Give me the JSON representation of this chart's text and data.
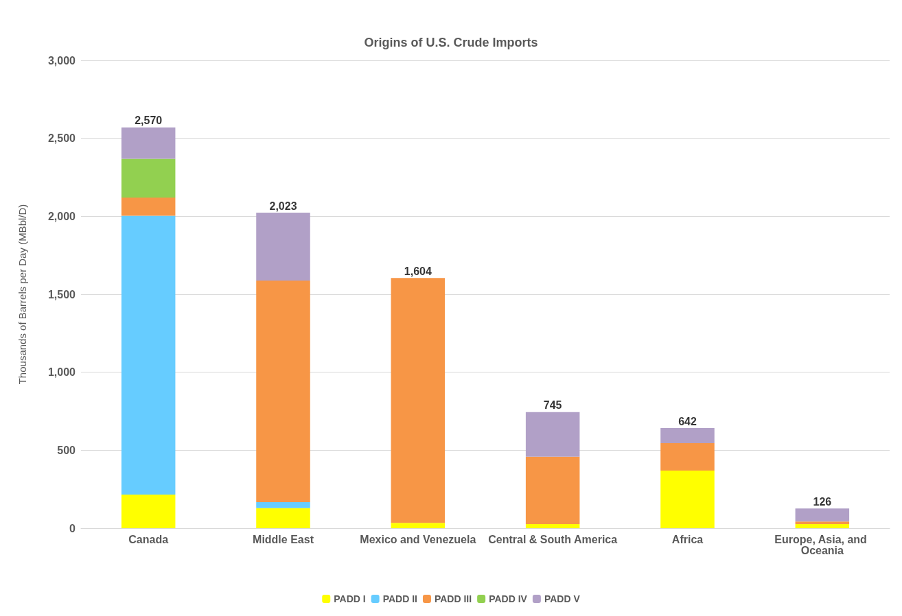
{
  "chart_data": {
    "type": "bar",
    "title": "Origins of U.S. Crude Imports",
    "ylabel": "Thousands of Barrels per Day (MBbl/D)",
    "categories": [
      "Canada",
      "Middle East",
      "Mexico and Venezuela",
      "Central & South America",
      "Africa",
      "Europe, Asia, and Oceania"
    ],
    "stacked": true,
    "series": [
      {
        "name": "PADD I",
        "color": "#ffff00",
        "values": [
          215,
          129,
          34,
          26,
          369,
          26
        ]
      },
      {
        "name": "PADD II",
        "color": "#66ccff",
        "values": [
          1789,
          38,
          null,
          null,
          null,
          null
        ]
      },
      {
        "name": "PADD III",
        "color": "#f79646",
        "values": [
          116,
          1421,
          1570,
          433,
          176,
          17
        ]
      },
      {
        "name": "PADD IV",
        "color": "#92d050",
        "values": [
          249,
          null,
          null,
          null,
          null,
          null
        ]
      },
      {
        "name": "PADD V",
        "color": "#b1a0c7",
        "values": [
          201,
          435,
          null,
          286,
          97,
          83
        ]
      }
    ],
    "totals": [
      "2,570",
      "2,023",
      "1,604",
      "745",
      "642",
      "126"
    ],
    "ylim": [
      0,
      3000
    ],
    "yticks": [
      0,
      {
        "value": 500,
        "label": "500"
      },
      {
        "value": 1000,
        "label": "1,000"
      },
      {
        "value": 1500,
        "label": "1,500"
      },
      {
        "value": 2000,
        "label": "2,000"
      },
      {
        "value": 2500,
        "label": "2,500"
      },
      {
        "value": 3000,
        "label": "3,000"
      }
    ],
    "grid": "y",
    "legend": "bottom"
  }
}
